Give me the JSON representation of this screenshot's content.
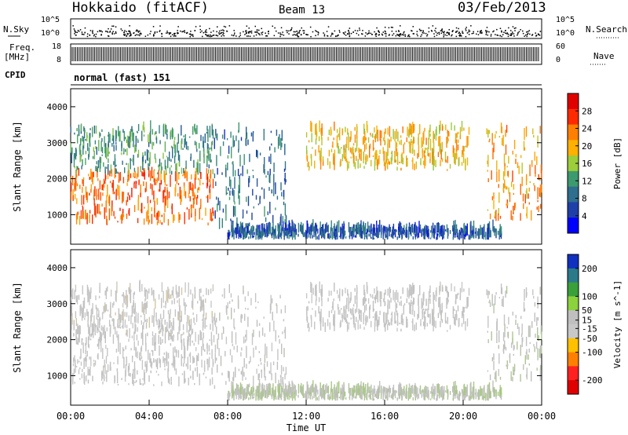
{
  "header": {
    "station": "Hokkaido (fitACF)",
    "beam": "Beam 13",
    "date": "03/Feb/2013"
  },
  "summary_panels": {
    "nsky_label": "N.Sky",
    "nsky_ticks": [
      "10^5",
      "10^0"
    ],
    "nsearch_label": "N.Search",
    "freq_label": "Freq.",
    "freq_unit": "[MHz]",
    "freq_ticks": [
      "18",
      "8"
    ],
    "nave_label": "Nave",
    "nave_ticks": [
      "60",
      "0"
    ],
    "cpid_label": "CPID",
    "cpid_value": "normal (fast) 151"
  },
  "colors": {
    "power_scale": [
      "#0000ff",
      "#1f3fa8",
      "#2e6e8e",
      "#3c9a6e",
      "#9ccd3a",
      "#ffb000",
      "#ff7f00",
      "#ff2a00",
      "#e00000"
    ],
    "velocity_scale": [
      "#1030c0",
      "#2a7a8a",
      "#3aa03a",
      "#8cd23c",
      "#bfbfbf",
      "#c8c8c8",
      "#ffc000",
      "#ff8000",
      "#ff2020",
      "#e00000"
    ]
  },
  "chart_data": [
    {
      "type": "heatmap",
      "panel": "power",
      "xlabel": "Time UT",
      "ylabel": "Slant Range [km]",
      "x_ticks": [
        "00:00",
        "04:00",
        "08:00",
        "12:00",
        "16:00",
        "20:00",
        "00:00"
      ],
      "xlim": [
        0,
        24
      ],
      "ylim": [
        180,
        4500
      ],
      "y_ticks": [
        1000,
        2000,
        3000,
        4000
      ],
      "colorbar": {
        "label": "Power [dB]",
        "ticks": [
          4,
          8,
          12,
          16,
          20,
          24,
          28
        ],
        "range": [
          0,
          32
        ]
      },
      "echo_regions": [
        {
          "t_start": 0.0,
          "t_end": 7.3,
          "r_min": 700,
          "r_max": 2100,
          "value": 25
        },
        {
          "t_start": 0.0,
          "t_end": 7.3,
          "r_min": 2100,
          "r_max": 3350,
          "value": 11
        },
        {
          "t_start": 7.3,
          "t_end": 11.0,
          "r_min": 600,
          "r_max": 3300,
          "value": 8
        },
        {
          "t_start": 12.0,
          "t_end": 20.3,
          "r_min": 2200,
          "r_max": 3350,
          "value": 20
        },
        {
          "t_start": 21.2,
          "t_end": 24.0,
          "r_min": 800,
          "r_max": 3300,
          "value": 22
        },
        {
          "t_start": 8.0,
          "t_end": 22.0,
          "r_min": 300,
          "r_max": 550,
          "value": 6
        }
      ]
    },
    {
      "type": "heatmap",
      "panel": "velocity",
      "xlabel": "Time UT",
      "ylabel": "Slant Range [km]",
      "x_ticks": [
        "00:00",
        "04:00",
        "08:00",
        "12:00",
        "16:00",
        "20:00",
        "00:00"
      ],
      "xlim": [
        0,
        24
      ],
      "ylim": [
        180,
        4500
      ],
      "y_ticks": [
        1000,
        2000,
        3000,
        4000
      ],
      "colorbar": {
        "label": "Velocity [m s^-1]",
        "ticks": [
          200,
          100,
          50,
          15,
          -15,
          -50,
          -100,
          -200
        ],
        "range": [
          -250,
          250
        ]
      },
      "echo_regions": [
        {
          "t_start": 0.0,
          "t_end": 7.3,
          "r_min": 700,
          "r_max": 2100,
          "value": 0
        },
        {
          "t_start": 0.0,
          "t_end": 7.3,
          "r_min": 2100,
          "r_max": 3350,
          "value": -10
        },
        {
          "t_start": 7.3,
          "t_end": 11.0,
          "r_min": 600,
          "r_max": 3300,
          "value": 5
        },
        {
          "t_start": 12.0,
          "t_end": 20.3,
          "r_min": 2200,
          "r_max": 3350,
          "value": 0
        },
        {
          "t_start": 21.2,
          "t_end": 24.0,
          "r_min": 800,
          "r_max": 3300,
          "value": 20
        },
        {
          "t_start": 8.0,
          "t_end": 22.0,
          "r_min": 300,
          "r_max": 550,
          "value": 30
        }
      ]
    }
  ]
}
